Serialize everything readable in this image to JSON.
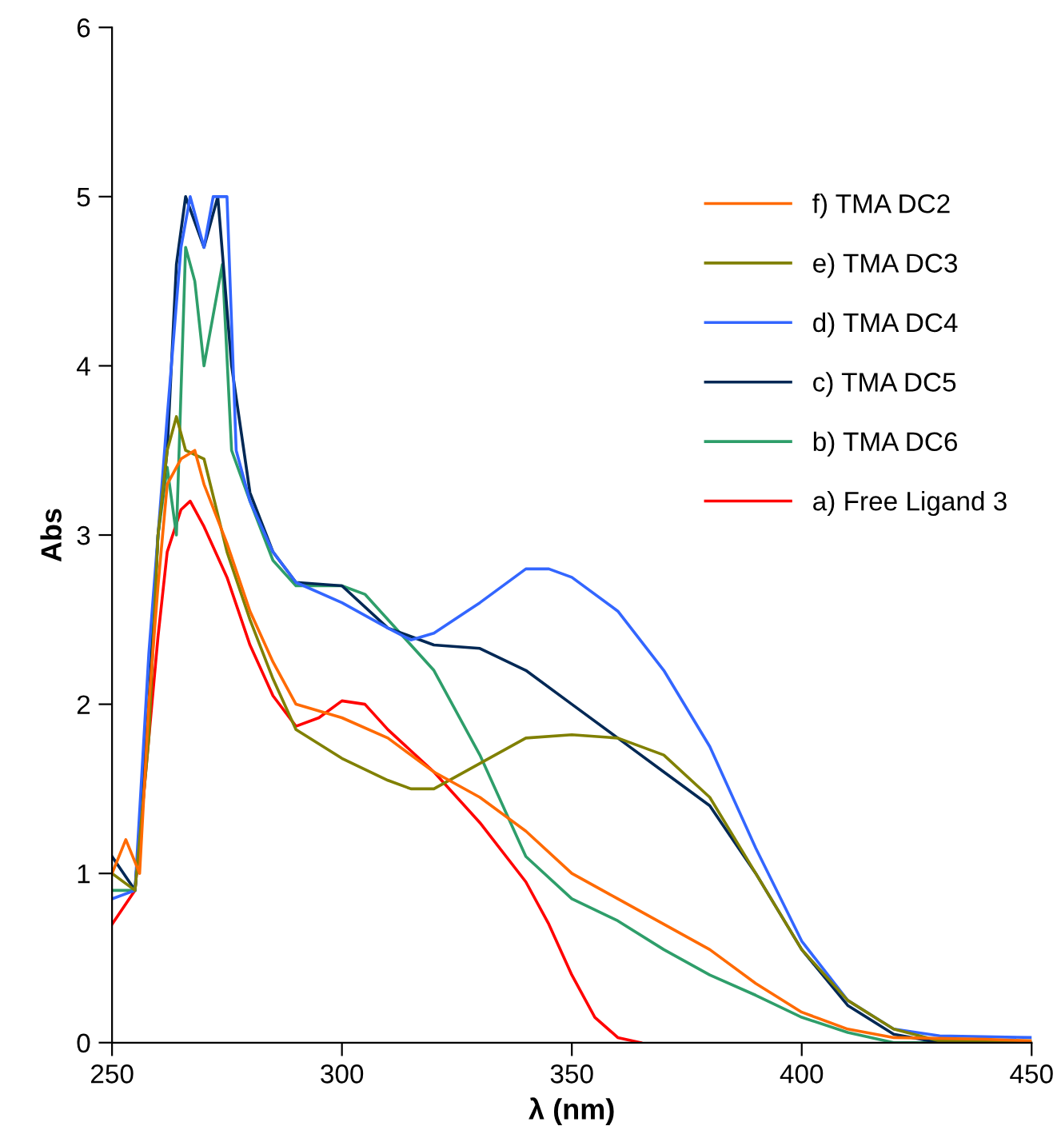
{
  "chart_data": {
    "type": "line",
    "xlabel": "λ (nm)",
    "ylabel": "Abs",
    "xlim": [
      250,
      450
    ],
    "xticks": [
      250,
      300,
      350,
      400,
      450
    ],
    "ylim": [
      0,
      6
    ],
    "yticks": [
      0,
      1,
      2,
      3,
      4,
      5,
      6
    ],
    "grid": false,
    "legend": "top right",
    "marker": "none",
    "line_style": "solid",
    "series": [
      {
        "name": "f) TMA DC2",
        "color": "#ff6a00",
        "x": [
          250,
          253,
          256,
          258,
          260,
          262,
          265,
          268,
          270,
          275,
          280,
          285,
          290,
          300,
          310,
          320,
          330,
          340,
          350,
          360,
          370,
          380,
          390,
          400,
          410,
          420,
          440,
          450
        ],
        "values": [
          1.0,
          1.2,
          1.0,
          2.0,
          2.7,
          3.3,
          3.45,
          3.5,
          3.3,
          2.95,
          2.55,
          2.25,
          2.0,
          1.92,
          1.8,
          1.6,
          1.45,
          1.25,
          1.0,
          0.85,
          0.7,
          0.55,
          0.35,
          0.18,
          0.08,
          0.03,
          0.02,
          0.01
        ]
      },
      {
        "name": "e) TMA DC3",
        "color": "#808000",
        "x": [
          250,
          255,
          258,
          260,
          262,
          264,
          266,
          270,
          275,
          280,
          285,
          290,
          300,
          310,
          315,
          320,
          330,
          340,
          350,
          360,
          370,
          380,
          390,
          400,
          410,
          420,
          430,
          450
        ],
        "values": [
          1.0,
          0.9,
          1.8,
          3.0,
          3.5,
          3.7,
          3.5,
          3.45,
          2.9,
          2.5,
          2.15,
          1.85,
          1.68,
          1.55,
          1.5,
          1.5,
          1.65,
          1.8,
          1.82,
          1.8,
          1.7,
          1.45,
          1.0,
          0.55,
          0.25,
          0.08,
          0.01,
          0.01
        ]
      },
      {
        "name": "d) TMA DC4",
        "color": "#3366ff",
        "x": [
          250,
          255,
          258,
          260,
          262,
          265,
          267,
          270,
          272,
          275,
          277,
          280,
          285,
          290,
          300,
          310,
          315,
          320,
          330,
          340,
          345,
          350,
          360,
          370,
          380,
          390,
          400,
          410,
          420,
          430,
          450
        ],
        "values": [
          0.85,
          0.9,
          2.3,
          3.0,
          3.7,
          4.7,
          5.0,
          4.7,
          5.0,
          5.0,
          3.5,
          3.2,
          2.9,
          2.72,
          2.6,
          2.45,
          2.38,
          2.42,
          2.6,
          2.8,
          2.8,
          2.75,
          2.55,
          2.2,
          1.75,
          1.15,
          0.6,
          0.25,
          0.08,
          0.04,
          0.03
        ]
      },
      {
        "name": "c) TMA DC5",
        "color": "#002855",
        "x": [
          250,
          255,
          258,
          260,
          262,
          264,
          266,
          270,
          273,
          276,
          280,
          285,
          290,
          300,
          310,
          320,
          330,
          340,
          350,
          360,
          370,
          380,
          390,
          400,
          410,
          420,
          430,
          450
        ],
        "values": [
          1.1,
          0.9,
          2.0,
          3.0,
          3.5,
          4.6,
          5.0,
          4.7,
          5.0,
          4.0,
          3.25,
          2.9,
          2.72,
          2.7,
          2.45,
          2.35,
          2.33,
          2.2,
          2.0,
          1.8,
          1.6,
          1.4,
          1.0,
          0.55,
          0.22,
          0.05,
          0.0,
          0.0
        ]
      },
      {
        "name": "b) TMA DC6",
        "color": "#2e9e6a",
        "x": [
          250,
          255,
          258,
          260,
          262,
          264,
          266,
          268,
          270,
          272,
          274,
          276,
          280,
          285,
          290,
          300,
          305,
          310,
          320,
          330,
          340,
          350,
          360,
          370,
          380,
          390,
          400,
          410,
          420,
          450
        ],
        "values": [
          0.9,
          0.9,
          2.0,
          3.0,
          3.4,
          3.0,
          4.7,
          4.5,
          4.0,
          4.3,
          4.6,
          3.5,
          3.2,
          2.85,
          2.7,
          2.7,
          2.65,
          2.5,
          2.2,
          1.7,
          1.1,
          0.85,
          0.72,
          0.55,
          0.4,
          0.28,
          0.15,
          0.06,
          0.0,
          0.0
        ]
      },
      {
        "name": "a) Free Ligand 3",
        "color": "#ff0000",
        "x": [
          250,
          255,
          258,
          260,
          262,
          265,
          267,
          270,
          275,
          280,
          285,
          290,
          295,
          300,
          305,
          310,
          320,
          330,
          340,
          345,
          350,
          355,
          360,
          365
        ],
        "values": [
          0.7,
          0.9,
          1.8,
          2.4,
          2.9,
          3.15,
          3.2,
          3.05,
          2.75,
          2.35,
          2.05,
          1.87,
          1.92,
          2.02,
          2.0,
          1.85,
          1.6,
          1.3,
          0.95,
          0.7,
          0.4,
          0.15,
          0.03,
          0.0
        ]
      }
    ]
  }
}
